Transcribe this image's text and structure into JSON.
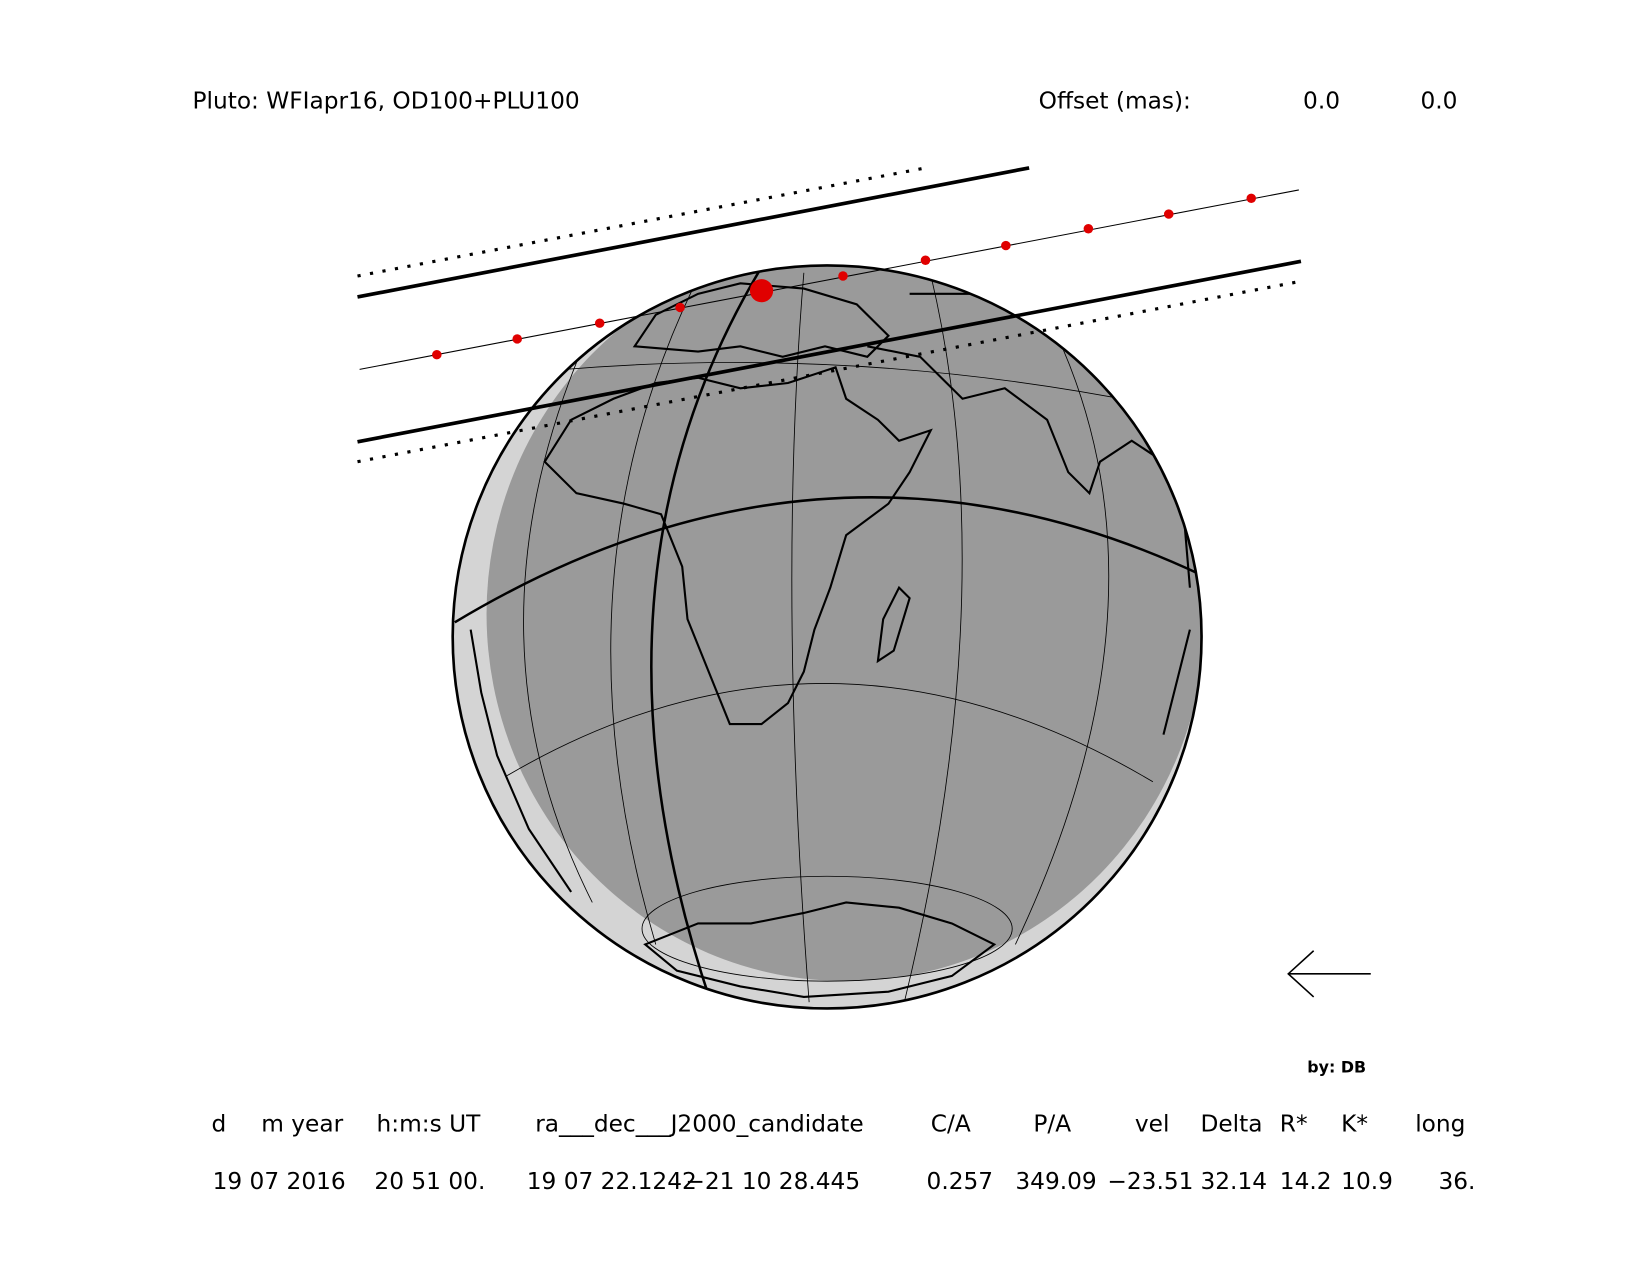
{
  "header": {
    "title": "Pluto: WFIapr16, OD100+PLU100",
    "offset_label": "Offset (mas):",
    "offset_ra": "0.0",
    "offset_dec": "0.0"
  },
  "credit": "by: DB",
  "table": {
    "header": [
      "d",
      "m year",
      "h:m:s UT",
      "ra___dec___J2000_candidate",
      "C/A",
      "P/A",
      "vel",
      "Delta",
      "R*",
      "K*",
      "long"
    ],
    "rows": [
      [
        "19 07 2016",
        "20 51 00.",
        "19 07 22.1242",
        "−21 10 28.445",
        "0.257",
        "349.09",
        "−23.51",
        "32.14",
        "14.2",
        "10.9",
        "36."
      ]
    ]
  }
}
